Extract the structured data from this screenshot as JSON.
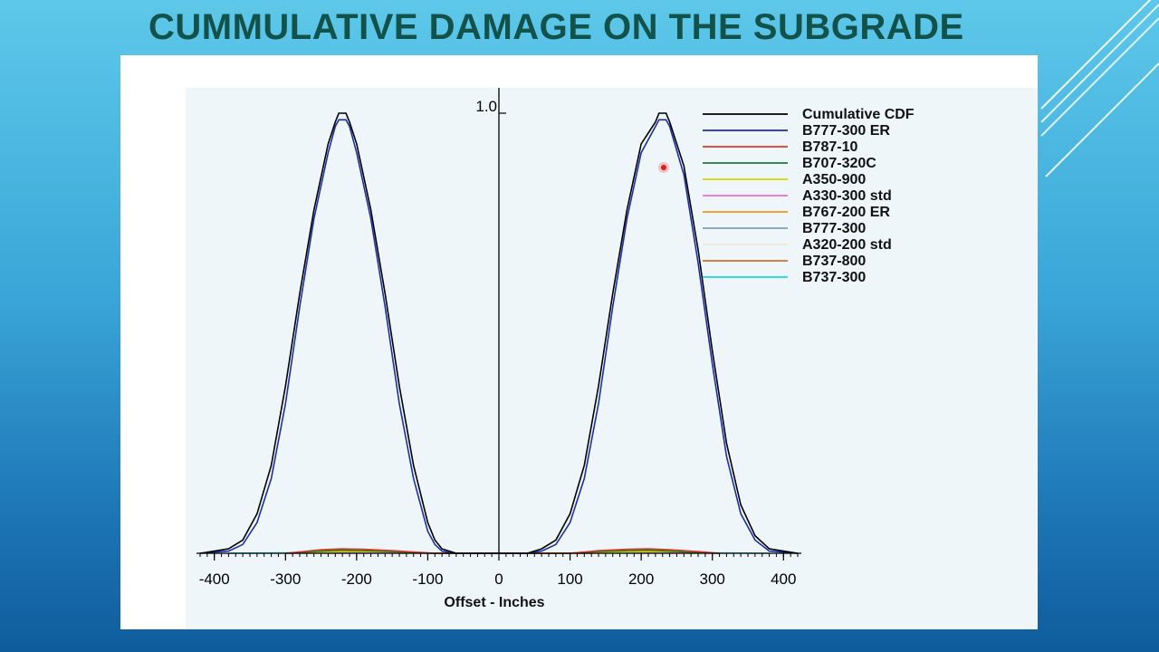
{
  "slide": {
    "title": "CUMMULATIVE DAMAGE ON THE SUBGRADE"
  },
  "chart_data": {
    "type": "line",
    "title": "",
    "xlabel": "Offset - Inches",
    "ylabel": "",
    "xlim": [
      -420,
      420
    ],
    "ylim": [
      0,
      1.0
    ],
    "x_ticks": [
      -400,
      -300,
      -200,
      -100,
      0,
      100,
      200,
      300,
      400
    ],
    "y_ticks": [
      1.0
    ],
    "y_tick_labels": [
      "1.0"
    ],
    "grid": false,
    "legend_position": "top-right",
    "series": [
      {
        "name": "Cumulative CDF",
        "color": "#000000",
        "x": [
          -420,
          -380,
          -360,
          -340,
          -320,
          -300,
          -280,
          -260,
          -240,
          -230,
          -225,
          -220,
          -215,
          -210,
          -200,
          -180,
          -160,
          -140,
          -120,
          -100,
          -90,
          -80,
          -60,
          -40,
          -20,
          0,
          20,
          40,
          60,
          80,
          100,
          120,
          140,
          160,
          180,
          200,
          220,
          225,
          230,
          235,
          240,
          260,
          280,
          300,
          320,
          340,
          360,
          380,
          420
        ],
        "y": [
          0,
          0.01,
          0.03,
          0.09,
          0.2,
          0.38,
          0.59,
          0.78,
          0.93,
          0.98,
          1.0,
          1.0,
          1.0,
          0.98,
          0.93,
          0.78,
          0.59,
          0.38,
          0.2,
          0.07,
          0.03,
          0.01,
          0,
          0,
          0,
          0,
          0,
          0,
          0.01,
          0.03,
          0.09,
          0.2,
          0.38,
          0.59,
          0.78,
          0.93,
          0.98,
          1.0,
          1.0,
          1.0,
          0.98,
          0.88,
          0.69,
          0.46,
          0.25,
          0.11,
          0.04,
          0.01,
          0
        ]
      },
      {
        "name": "B777-300 ER",
        "color": "#1a2fa8",
        "x": [
          -420,
          -380,
          -360,
          -340,
          -320,
          -300,
          -280,
          -260,
          -240,
          -230,
          -225,
          -220,
          -215,
          -210,
          -200,
          -180,
          -160,
          -140,
          -120,
          -100,
          -90,
          -80,
          -60,
          -40,
          -20,
          0,
          20,
          40,
          60,
          80,
          100,
          120,
          140,
          160,
          180,
          200,
          220,
          225,
          230,
          235,
          240,
          260,
          280,
          300,
          320,
          340,
          360,
          380,
          420
        ],
        "y": [
          0,
          0.005,
          0.02,
          0.07,
          0.17,
          0.34,
          0.56,
          0.76,
          0.91,
          0.97,
          0.985,
          0.985,
          0.985,
          0.97,
          0.91,
          0.76,
          0.56,
          0.34,
          0.17,
          0.05,
          0.02,
          0.005,
          0,
          0,
          0,
          0,
          0,
          0,
          0.005,
          0.02,
          0.07,
          0.17,
          0.34,
          0.56,
          0.76,
          0.91,
          0.97,
          0.985,
          0.985,
          0.985,
          0.97,
          0.86,
          0.66,
          0.43,
          0.22,
          0.09,
          0.03,
          0.005,
          0
        ]
      },
      {
        "name": "B787-10",
        "color": "#d93a2b",
        "x": [
          -300,
          -250,
          -220,
          -190,
          -150,
          -110,
          -90,
          100,
          140,
          180,
          210,
          240,
          280,
          310
        ],
        "y": [
          0,
          0.008,
          0.01,
          0.009,
          0.006,
          0.002,
          0,
          0,
          0.006,
          0.009,
          0.01,
          0.008,
          0.004,
          0
        ]
      },
      {
        "name": "B707-320C",
        "color": "#1f7a3a",
        "x": [
          -300,
          -250,
          -220,
          -190,
          -150,
          -110,
          -90,
          100,
          140,
          180,
          210,
          240,
          280,
          310
        ],
        "y": [
          0,
          0.005,
          0.007,
          0.006,
          0.004,
          0.001,
          0,
          0,
          0.004,
          0.006,
          0.007,
          0.005,
          0.002,
          0
        ]
      },
      {
        "name": "A350-900",
        "color": "#d6d600",
        "x": [
          -300,
          -220,
          -150,
          -90,
          100,
          180,
          240,
          310
        ],
        "y": [
          0,
          0.004,
          0.003,
          0,
          0,
          0.003,
          0.004,
          0
        ]
      },
      {
        "name": "A330-300 std",
        "color": "#e86fd9",
        "x": [
          -300,
          -220,
          -150,
          -90,
          100,
          180,
          240,
          310
        ],
        "y": [
          0,
          0.003,
          0.002,
          0,
          0,
          0.002,
          0.003,
          0
        ]
      },
      {
        "name": "B767-200 ER",
        "color": "#f0951e",
        "x": [
          -300,
          -220,
          -150,
          -90,
          100,
          180,
          240,
          310
        ],
        "y": [
          0,
          0.003,
          0.002,
          0,
          0,
          0.002,
          0.003,
          0
        ]
      },
      {
        "name": "B777-300",
        "color": "#7f9fb8",
        "x": [
          -300,
          -220,
          -150,
          -90,
          100,
          180,
          240,
          310
        ],
        "y": [
          0,
          0.002,
          0.001,
          0,
          0,
          0.001,
          0.002,
          0
        ]
      },
      {
        "name": "A320-200 std",
        "color": "#efe8d2",
        "x": [
          -300,
          -220,
          -150,
          -90,
          100,
          180,
          240,
          310
        ],
        "y": [
          0,
          0.002,
          0.001,
          0,
          0,
          0.001,
          0.002,
          0
        ]
      },
      {
        "name": "B737-800",
        "color": "#d2702a",
        "x": [
          -300,
          -220,
          -150,
          -90,
          100,
          180,
          240,
          310
        ],
        "y": [
          0,
          0.002,
          0.001,
          0,
          0,
          0.001,
          0.002,
          0
        ]
      },
      {
        "name": "B737-300",
        "color": "#22d6d6",
        "x": [
          -380,
          -300,
          -220,
          -150,
          -60,
          60,
          150,
          220,
          300,
          380
        ],
        "y": [
          0,
          0.001,
          0.002,
          0.001,
          0,
          0,
          0.001,
          0.002,
          0.001,
          0
        ]
      }
    ]
  }
}
